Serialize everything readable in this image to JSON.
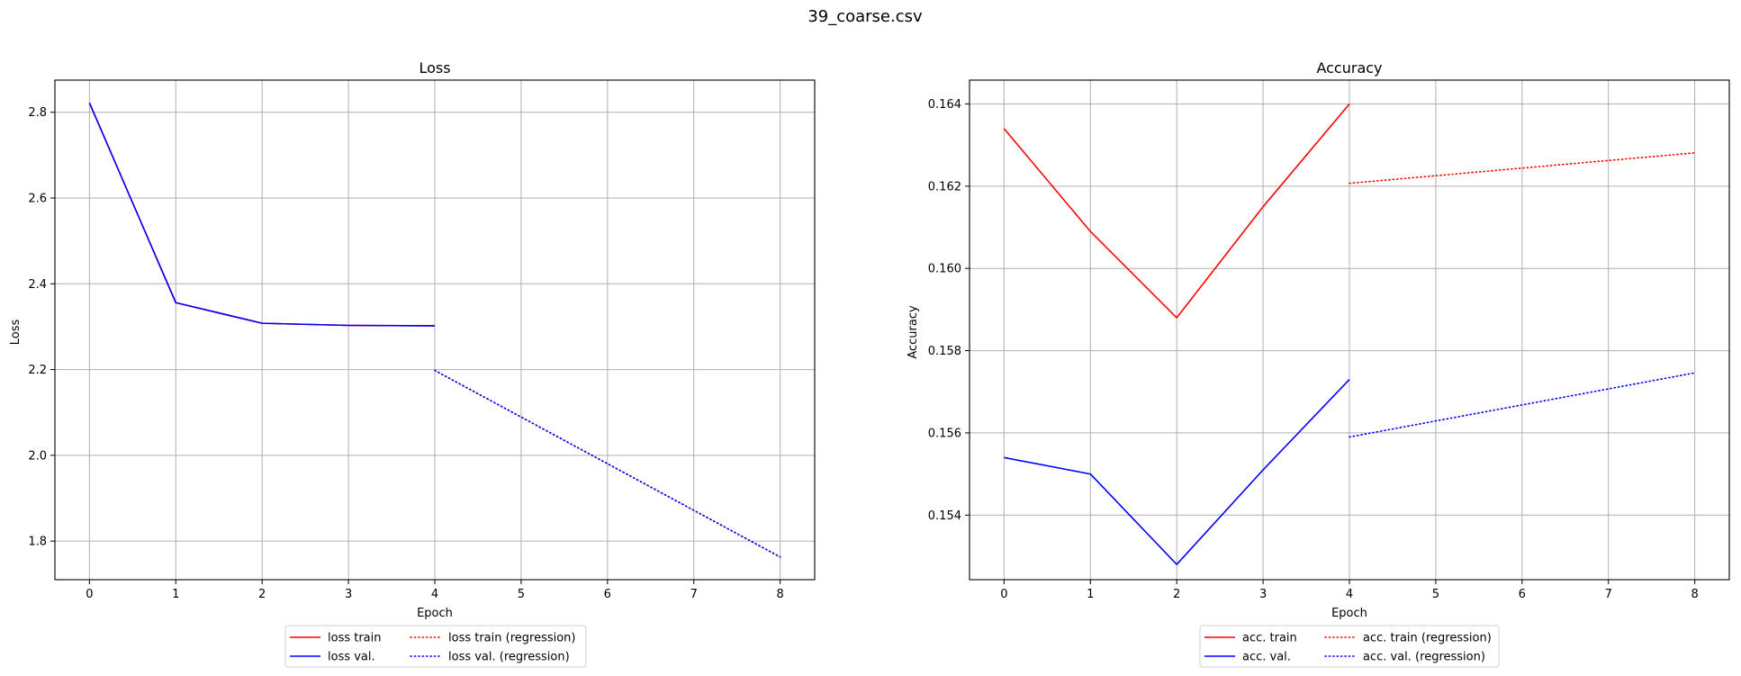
{
  "figure": {
    "title": "39_coarse.csv"
  },
  "chart_data": [
    {
      "type": "line",
      "title": "Loss",
      "xlabel": "Epoch",
      "ylabel": "Loss",
      "xlim": [
        -0.4,
        8.4
      ],
      "ylim": [
        1.71,
        2.875
      ],
      "xticks": [
        0,
        1,
        2,
        3,
        4,
        5,
        6,
        7,
        8
      ],
      "yticks": [
        1.8,
        2.0,
        2.2,
        2.4,
        2.6,
        2.8
      ],
      "ytick_labels": [
        "1.8",
        "2.0",
        "2.2",
        "2.4",
        "2.6",
        "2.8"
      ],
      "grid": true,
      "legend": {
        "placement": "below",
        "columns": 2
      },
      "series": [
        {
          "name": "loss train",
          "color": "#ff0000",
          "style": "solid",
          "x": [
            0,
            1,
            2,
            3,
            4
          ],
          "values": [
            2.822,
            2.356,
            2.308,
            2.303,
            2.302
          ]
        },
        {
          "name": "loss val.",
          "color": "#0000ff",
          "style": "solid",
          "x": [
            0,
            1,
            2,
            3,
            4
          ],
          "values": [
            2.822,
            2.356,
            2.308,
            2.303,
            2.302
          ]
        },
        {
          "name": "loss train (regression)",
          "color": "#ff0000",
          "style": "dotted",
          "x": [
            4,
            8
          ],
          "values": [
            2.198,
            1.763
          ]
        },
        {
          "name": "loss val. (regression)",
          "color": "#0000ff",
          "style": "dotted",
          "x": [
            4,
            8
          ],
          "values": [
            2.198,
            1.763
          ]
        }
      ]
    },
    {
      "type": "line",
      "title": "Accuracy",
      "xlabel": "Epoch",
      "ylabel": "Accuracy",
      "xlim": [
        -0.4,
        8.4
      ],
      "ylim": [
        0.15243,
        0.16458
      ],
      "xticks": [
        0,
        1,
        2,
        3,
        4,
        5,
        6,
        7,
        8
      ],
      "yticks": [
        0.154,
        0.156,
        0.158,
        0.16,
        0.162,
        0.164
      ],
      "ytick_labels": [
        "0.154",
        "0.156",
        "0.158",
        "0.160",
        "0.162",
        "0.164"
      ],
      "grid": true,
      "legend": {
        "placement": "below",
        "columns": 2
      },
      "series": [
        {
          "name": "acc. train",
          "color": "#ff0000",
          "style": "solid",
          "x": [
            0,
            1,
            2,
            3,
            4
          ],
          "values": [
            0.1634,
            0.1609,
            0.1588,
            0.1615,
            0.164
          ]
        },
        {
          "name": "acc. val.",
          "color": "#0000ff",
          "style": "solid",
          "x": [
            0,
            1,
            2,
            3,
            4
          ],
          "values": [
            0.1554,
            0.155,
            0.1528,
            0.1551,
            0.1573
          ]
        },
        {
          "name": "acc. train (regression)",
          "color": "#ff0000",
          "style": "dotted",
          "x": [
            4,
            8
          ],
          "values": [
            0.16207,
            0.16281
          ]
        },
        {
          "name": "acc. val. (regression)",
          "color": "#0000ff",
          "style": "dotted",
          "x": [
            4,
            8
          ],
          "values": [
            0.1559,
            0.15746
          ]
        }
      ]
    }
  ]
}
